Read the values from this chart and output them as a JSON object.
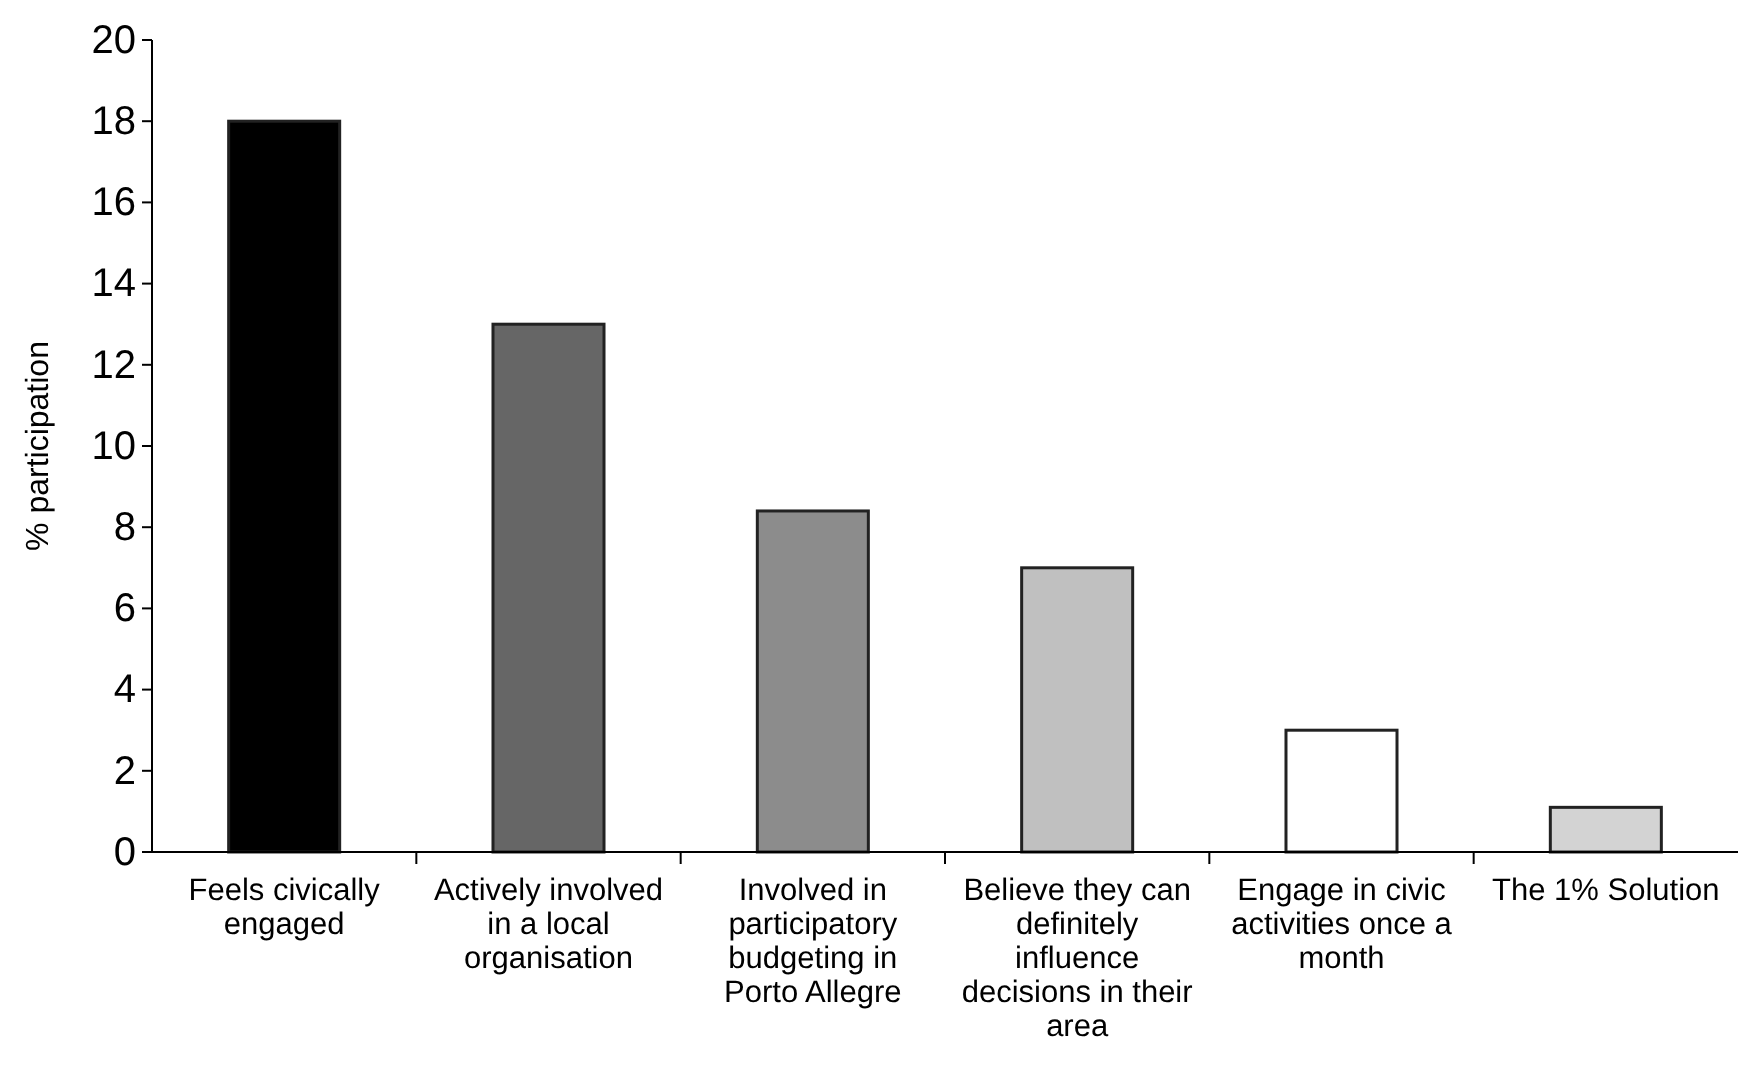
{
  "chart_data": {
    "type": "bar",
    "ylabel": "% participation",
    "categories": [
      "Feels civically engaged",
      "Actively involved in a local organisation",
      "Involved in participatory budgeting in Porto Allegre",
      "Believe they can definitely influence decisions in their area",
      "Engage in civic activities once a month",
      "The 1% Solution"
    ],
    "values": [
      18,
      13,
      8.4,
      7,
      3,
      1.1
    ],
    "colors": [
      "#000000",
      "#666666",
      "#8c8c8c",
      "#c0c0c0",
      "#ffffff",
      "#d3d3d3"
    ],
    "ylim": [
      0,
      20
    ],
    "yticks": [
      0,
      2,
      4,
      6,
      8,
      10,
      12,
      14,
      16,
      18,
      20
    ],
    "grid": false
  }
}
